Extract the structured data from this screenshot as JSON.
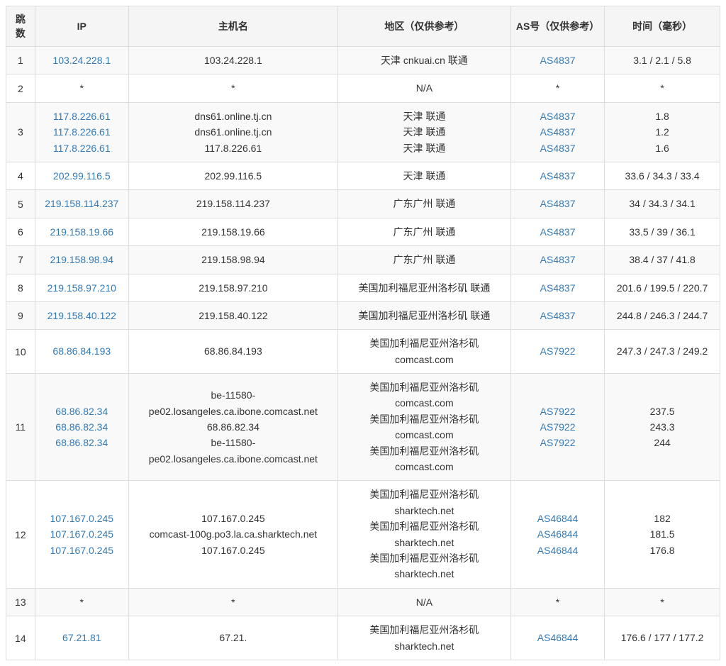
{
  "headers": {
    "hop": "跳数",
    "ip": "IP",
    "hostname": "主机名",
    "region": "地区（仅供参考）",
    "as": "AS号（仅供参考）",
    "time": "时间（毫秒）"
  },
  "rows": [
    {
      "hop": "1",
      "ip": [
        "103.24.228.1"
      ],
      "hostname": [
        "103.24.228.1"
      ],
      "region": [
        "天津 cnkuai.cn 联通"
      ],
      "as": [
        "AS4837"
      ],
      "time": [
        "3.1 / 2.1 / 5.8"
      ]
    },
    {
      "hop": "2",
      "ip": [
        "*"
      ],
      "hostname": [
        "*"
      ],
      "region": [
        "N/A"
      ],
      "as": [
        "*"
      ],
      "time": [
        "*"
      ],
      "plain": true
    },
    {
      "hop": "3",
      "ip": [
        "117.8.226.61",
        "117.8.226.61",
        "117.8.226.61"
      ],
      "hostname": [
        "dns61.online.tj.cn",
        "dns61.online.tj.cn",
        "117.8.226.61"
      ],
      "region": [
        "天津 联通",
        "天津 联通",
        "天津 联通"
      ],
      "as": [
        "AS4837",
        "AS4837",
        "AS4837"
      ],
      "time": [
        "1.8",
        "1.2",
        "1.6"
      ]
    },
    {
      "hop": "4",
      "ip": [
        "202.99.116.5"
      ],
      "hostname": [
        "202.99.116.5"
      ],
      "region": [
        "天津 联通"
      ],
      "as": [
        "AS4837"
      ],
      "time": [
        "33.6 / 34.3 / 33.4"
      ]
    },
    {
      "hop": "5",
      "ip": [
        "219.158.114.237"
      ],
      "hostname": [
        "219.158.114.237"
      ],
      "region": [
        "广东广州 联通"
      ],
      "as": [
        "AS4837"
      ],
      "time": [
        "34 / 34.3 / 34.1"
      ]
    },
    {
      "hop": "6",
      "ip": [
        "219.158.19.66"
      ],
      "hostname": [
        "219.158.19.66"
      ],
      "region": [
        "广东广州 联通"
      ],
      "as": [
        "AS4837"
      ],
      "time": [
        "33.5 / 39 / 36.1"
      ]
    },
    {
      "hop": "7",
      "ip": [
        "219.158.98.94"
      ],
      "hostname": [
        "219.158.98.94"
      ],
      "region": [
        "广东广州 联通"
      ],
      "as": [
        "AS4837"
      ],
      "time": [
        "38.4 / 37 / 41.8"
      ]
    },
    {
      "hop": "8",
      "ip": [
        "219.158.97.210"
      ],
      "hostname": [
        "219.158.97.210"
      ],
      "region": [
        "美国加利福尼亚州洛杉矶 联通"
      ],
      "as": [
        "AS4837"
      ],
      "time": [
        "201.6 / 199.5 / 220.7"
      ]
    },
    {
      "hop": "9",
      "ip": [
        "219.158.40.122"
      ],
      "hostname": [
        "219.158.40.122"
      ],
      "region": [
        "美国加利福尼亚州洛杉矶 联通"
      ],
      "as": [
        "AS4837"
      ],
      "time": [
        "244.8 / 246.3 / 244.7"
      ]
    },
    {
      "hop": "10",
      "ip": [
        "68.86.84.193"
      ],
      "hostname": [
        "68.86.84.193"
      ],
      "region": [
        "美国加利福尼亚州洛杉矶 comcast.com"
      ],
      "as": [
        "AS7922"
      ],
      "time": [
        "247.3 / 247.3 / 249.2"
      ]
    },
    {
      "hop": "11",
      "ip": [
        "68.86.82.34",
        "68.86.82.34",
        "68.86.82.34"
      ],
      "hostname": [
        "be-11580-pe02.losangeles.ca.ibone.comcast.net",
        "68.86.82.34",
        "be-11580-pe02.losangeles.ca.ibone.comcast.net"
      ],
      "region": [
        "美国加利福尼亚州洛杉矶 comcast.com",
        "美国加利福尼亚州洛杉矶 comcast.com",
        "美国加利福尼亚州洛杉矶 comcast.com"
      ],
      "as": [
        "AS7922",
        "AS7922",
        "AS7922"
      ],
      "time": [
        "237.5",
        "243.3",
        "244"
      ]
    },
    {
      "hop": "12",
      "ip": [
        "107.167.0.245",
        "107.167.0.245",
        "107.167.0.245"
      ],
      "hostname": [
        "107.167.0.245",
        "comcast-100g.po3.la.ca.sharktech.net",
        "107.167.0.245"
      ],
      "region": [
        "美国加利福尼亚州洛杉矶 sharktech.net",
        "美国加利福尼亚州洛杉矶 sharktech.net",
        "美国加利福尼亚州洛杉矶 sharktech.net"
      ],
      "as": [
        "AS46844",
        "AS46844",
        "AS46844"
      ],
      "time": [
        "182",
        "181.5",
        "176.8"
      ]
    },
    {
      "hop": "13",
      "ip": [
        "*"
      ],
      "hostname": [
        "*"
      ],
      "region": [
        "N/A"
      ],
      "as": [
        "*"
      ],
      "time": [
        "*"
      ],
      "plain": true
    },
    {
      "hop": "14",
      "ip": [
        "67.21.81"
      ],
      "hostname": [
        "67.21."
      ],
      "region": [
        "美国加利福尼亚州洛杉矶 sharktech.net"
      ],
      "as": [
        "AS46844"
      ],
      "time": [
        "176.6 / 177 / 177.2"
      ]
    }
  ],
  "styling": {
    "link_color": "#337ab7",
    "border_color": "#dddddd",
    "header_bg": "#f5f5f5",
    "row_odd_bg": "#f9f9f9",
    "row_even_bg": "#ffffff",
    "font_size": 14
  }
}
